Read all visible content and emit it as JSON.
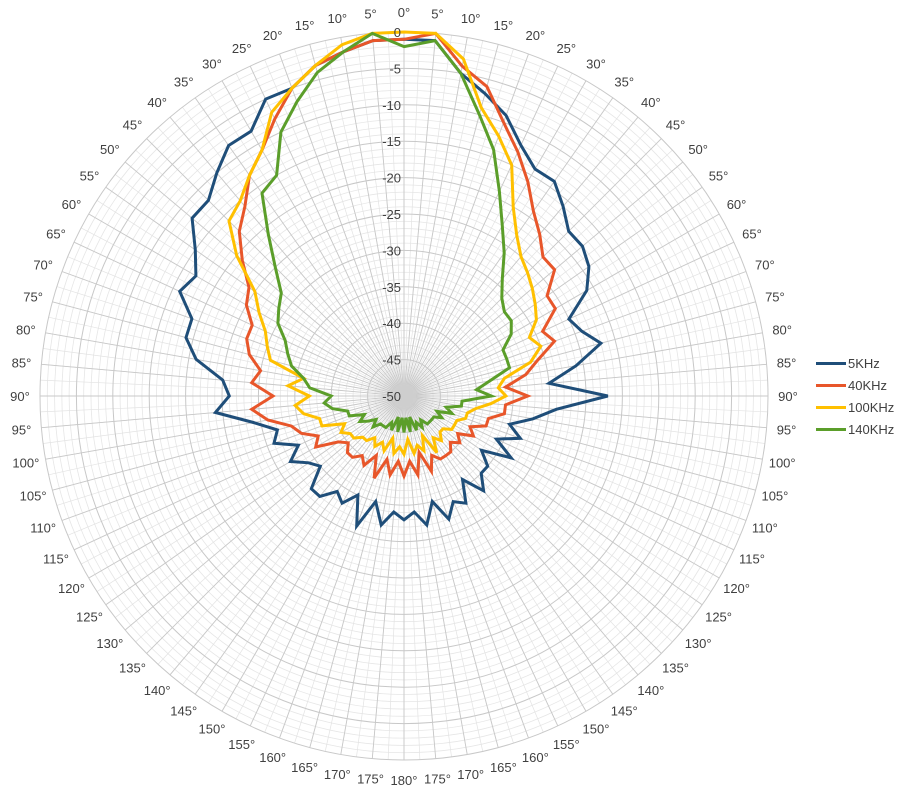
{
  "chart_data": {
    "type": "radar",
    "title": "",
    "center": [
      404,
      396
    ],
    "radius": 364,
    "rlim": [
      -50,
      0
    ],
    "r_ticks": [
      0,
      -5,
      -10,
      -15,
      -20,
      -25,
      -30,
      -35,
      -40,
      -45,
      -50
    ],
    "r_tick_labels": [
      "0",
      "-5",
      "-10",
      "-15",
      "-20",
      "-25",
      "-30",
      "-35",
      "-40",
      "-45",
      "-50"
    ],
    "categories": [
      "0°",
      "5°",
      "10°",
      "15°",
      "20°",
      "25°",
      "30°",
      "35°",
      "40°",
      "45°",
      "50°",
      "55°",
      "60°",
      "65°",
      "70°",
      "75°",
      "80°",
      "85°",
      "90°",
      "95°",
      "100°",
      "105°",
      "110°",
      "115°",
      "120°",
      "125°",
      "130°",
      "135°",
      "140°",
      "145°",
      "150°",
      "155°",
      "160°",
      "165°",
      "170°",
      "175°",
      "180°",
      "175°",
      "170°",
      "165°",
      "160°",
      "155°",
      "150°",
      "145°",
      "140°",
      "135°",
      "130°",
      "125°",
      "120°",
      "115°",
      "110°",
      "105°",
      "100°",
      "95°",
      "90°",
      "85°",
      "80°",
      "75°",
      "70°",
      "65°",
      "60°",
      "55°",
      "50°",
      "45°",
      "40°",
      "35°",
      "30°",
      "25°",
      "20°",
      "15°",
      "10°",
      "5°"
    ],
    "grid": true,
    "legend_position": "right",
    "series": [
      {
        "name": "5KHz",
        "color": "#1f4e79",
        "values": [
          -1,
          -1,
          -5,
          -7,
          -9,
          -12,
          -14,
          -14,
          -16,
          -18,
          -18,
          -19,
          -21,
          -25,
          -24,
          -22,
          -26,
          -30,
          -22,
          -29,
          -32,
          -35,
          -33,
          -36,
          -33,
          -37,
          -35,
          -35,
          -33,
          -36,
          -33,
          -34,
          -32,
          -35,
          -32,
          -34,
          -33,
          -34,
          -32,
          -35,
          -31,
          -35,
          -33,
          -34,
          -32,
          -32,
          -35,
          -34,
          -32,
          -34,
          -31,
          -32,
          -29,
          -24,
          -26,
          -25,
          -21,
          -19,
          -19,
          -16,
          -17,
          -15,
          -12,
          -12,
          -10,
          -8,
          -8,
          -5,
          -5,
          -3,
          -2,
          -1
        ]
      },
      {
        "name": "40KHz",
        "color": "#e8562a",
        "values": [
          -1,
          0,
          -4,
          -6,
          -10,
          -13,
          -16,
          -19,
          -21,
          -23,
          -23,
          -26,
          -26,
          -29,
          -28,
          -31,
          -33,
          -36,
          -33,
          -36,
          -36,
          -38,
          -38,
          -40,
          -39,
          -41,
          -40,
          -41,
          -40,
          -40,
          -40,
          -41,
          -39,
          -42,
          -39,
          -41,
          -39,
          -41,
          -39,
          -41,
          -38,
          -41,
          -39,
          -40,
          -39,
          -39,
          -40,
          -39,
          -36,
          -37,
          -35,
          -34,
          -31,
          -29,
          -32,
          -29,
          -30,
          -28,
          -27,
          -27,
          -25,
          -24,
          -21,
          -18,
          -16,
          -13,
          -11,
          -8,
          -5,
          -3,
          -2,
          -1
        ]
      },
      {
        "name": "100KHz",
        "color": "#ffc000",
        "values": [
          0,
          0,
          -3,
          -9,
          -12,
          -15,
          -20,
          -23,
          -25,
          -26,
          -27,
          -28,
          -29,
          -31,
          -30,
          -32,
          -36,
          -37,
          -36,
          -38,
          -40,
          -41,
          -41,
          -42,
          -42,
          -42,
          -43,
          -43,
          -42,
          -43,
          -41,
          -44,
          -42,
          -43,
          -42,
          -44,
          -42,
          -43,
          -42,
          -44,
          -42,
          -43,
          -42,
          -43,
          -42,
          -42,
          -41,
          -41,
          -40,
          -41,
          -38,
          -38,
          -36,
          -35,
          -37,
          -34,
          -36,
          -31,
          -30,
          -29,
          -27,
          -25,
          -20,
          -16,
          -15,
          -13,
          -11,
          -7,
          -5,
          -3,
          -1,
          0
        ]
      },
      {
        "name": "140KHz",
        "color": "#5b9e2a",
        "values": [
          -2,
          -1,
          -5,
          -10,
          -14,
          -19,
          -23,
          -26,
          -29,
          -31,
          -32,
          -32,
          -33,
          -35,
          -35,
          -35,
          -38,
          -40,
          -38,
          -42,
          -42,
          -44,
          -43,
          -45,
          -44,
          -45,
          -45,
          -45,
          -45,
          -46,
          -45,
          -46,
          -45,
          -47,
          -45,
          -47,
          -45,
          -47,
          -45,
          -47,
          -45,
          -46,
          -45,
          -45,
          -45,
          -44,
          -45,
          -44,
          -43,
          -44,
          -42,
          -42,
          -40,
          -39,
          -40,
          -37,
          -36,
          -34,
          -33,
          -32,
          -30,
          -29,
          -28,
          -25,
          -21,
          -16,
          -15,
          -10,
          -7,
          -4,
          -2,
          0
        ]
      }
    ]
  },
  "legend": {
    "items": [
      {
        "label": "5KHz",
        "color": "#1f4e79"
      },
      {
        "label": "40KHz",
        "color": "#e8562a"
      },
      {
        "label": "100KHz",
        "color": "#ffc000"
      },
      {
        "label": "140KHz",
        "color": "#5b9e2a"
      }
    ]
  }
}
